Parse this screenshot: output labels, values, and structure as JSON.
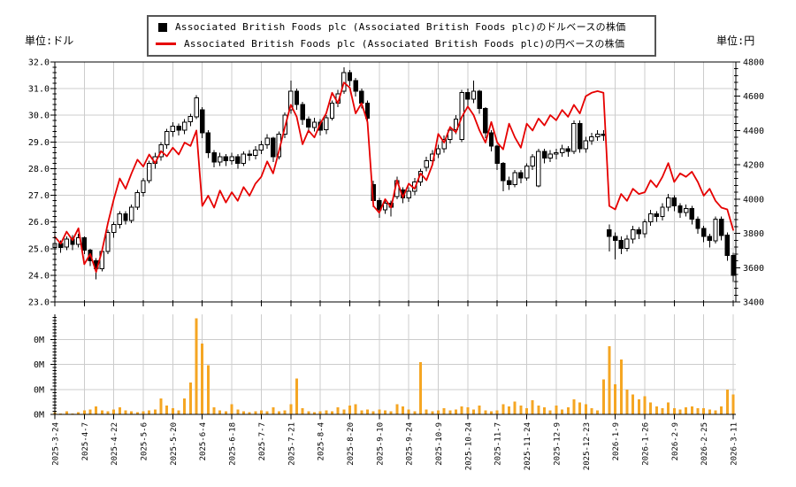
{
  "header": {
    "left_unit_label": "単位:ドル",
    "right_unit_label": "単位:円"
  },
  "legend": {
    "entries": [
      {
        "marker": "black-square",
        "label": "Associated British Foods plc (Associated British Foods plc)のドルベースの株価"
      },
      {
        "marker": "red-line",
        "label": "Associated British Foods plc (Associated British Foods plc)の円ベースの株価"
      }
    ]
  },
  "colors": {
    "grid": "#cccccc",
    "axis": "#000000",
    "background": "#ffffff",
    "red_line": "#e60000",
    "volume_bar": "#f5a623",
    "candle_up_fill": "#ffffff",
    "candle_down_fill": "#000000"
  },
  "chart_data": [
    {
      "type": "candlestick",
      "panel": "price",
      "x_tick_labels": [
        "2025-3-24",
        "2025-4-7",
        "2025-4-22",
        "2025-5-6",
        "2025-5-20",
        "2025-6-4",
        "2025-6-18",
        "2025-7-7",
        "2025-7-21",
        "2025-8-4",
        "2025-8-20",
        "2025-9-10",
        "2025-9-24",
        "2025-10-9",
        "2025-10-24",
        "2025-11-7",
        "2025-11-24",
        "2025-12-9",
        "2025-12-23",
        "2026-1-9",
        "2026-1-26",
        "2026-2-9",
        "2026-2-25",
        "2026-3-11"
      ],
      "points_per_tick": 5,
      "grid": true,
      "y_axis_left": {
        "unit": "ドル",
        "range": [
          23.0,
          32.0
        ],
        "tick_step": 1.0,
        "minor_step": 0.2,
        "tick_labels_top_down": [
          "32.0",
          "31.0",
          "30.0",
          "29.0",
          "28.0",
          "27.0",
          "26.0",
          "25.0",
          "24.0",
          "23.0"
        ]
      },
      "y_axis_right": {
        "unit": "円",
        "range": [
          3400,
          4800
        ],
        "tick_step": 200,
        "minor_step": 40,
        "tick_labels_top_down": [
          "4800",
          "4600",
          "4400",
          "4200",
          "4000",
          "3800",
          "3600",
          "3400"
        ]
      },
      "series": [
        {
          "name": "Associated British Foods plc (Associated British Foods plc)のドルベースの株価",
          "type": "candlestick",
          "axis": "left",
          "open": [
            25.05,
            25.2,
            25.05,
            25.35,
            25.15,
            25.4,
            24.95,
            24.55,
            24.25,
            24.9,
            25.6,
            25.9,
            26.3,
            26.05,
            26.55,
            27.1,
            27.55,
            28.2,
            28.45,
            28.9,
            29.4,
            29.6,
            29.45,
            29.75,
            29.95,
            30.2,
            29.35,
            28.6,
            28.25,
            28.45,
            28.3,
            28.45,
            28.2,
            28.55,
            28.5,
            28.7,
            28.9,
            29.15,
            28.45,
            29.3,
            30.2,
            30.9,
            30.4,
            29.85,
            29.55,
            29.75,
            29.45,
            29.9,
            30.45,
            30.9,
            31.6,
            31.3,
            30.9,
            30.45,
            27.4,
            26.8,
            26.45,
            26.7,
            26.95,
            27.2,
            26.9,
            27.15,
            27.5,
            28.05,
            28.3,
            28.55,
            28.75,
            29.1,
            29.45,
            29.1,
            30.85,
            30.6,
            30.9,
            30.25,
            29.35,
            28.85,
            28.2,
            27.55,
            27.4,
            27.85,
            27.65,
            28.1,
            27.35,
            28.65,
            28.4,
            28.55,
            28.6,
            28.75,
            28.65,
            29.7,
            28.75,
            29.05,
            29.2,
            29.3,
            25.7,
            25.45,
            25.3,
            25.0,
            25.35,
            25.7,
            25.55,
            26.0,
            26.3,
            26.2,
            26.55,
            26.9,
            26.6,
            26.35,
            26.5,
            26.1,
            25.75,
            25.45,
            25.3,
            26.1,
            25.5,
            24.75
          ],
          "high": [
            25.3,
            25.3,
            25.45,
            25.5,
            25.55,
            25.45,
            25.0,
            24.65,
            25.0,
            25.7,
            26.0,
            26.4,
            26.4,
            26.65,
            27.2,
            27.65,
            28.3,
            28.6,
            29.0,
            29.5,
            29.75,
            29.7,
            29.85,
            30.05,
            30.75,
            30.3,
            29.45,
            28.7,
            28.6,
            28.55,
            28.6,
            28.55,
            28.65,
            28.7,
            28.85,
            29.05,
            29.3,
            29.2,
            29.4,
            30.1,
            31.3,
            31.0,
            30.5,
            29.95,
            29.9,
            29.85,
            30.0,
            30.55,
            30.95,
            31.8,
            31.7,
            31.4,
            31.0,
            30.55,
            27.55,
            26.9,
            26.85,
            26.8,
            27.7,
            27.3,
            27.3,
            27.65,
            28.0,
            28.45,
            28.7,
            28.9,
            29.25,
            29.6,
            30.0,
            30.95,
            31.0,
            31.3,
            30.95,
            30.3,
            29.45,
            28.9,
            28.25,
            27.7,
            27.95,
            27.95,
            28.2,
            28.55,
            28.75,
            28.75,
            28.7,
            28.75,
            28.9,
            28.85,
            29.8,
            29.8,
            29.2,
            29.35,
            29.45,
            29.45,
            25.9,
            25.6,
            25.45,
            25.5,
            25.85,
            25.8,
            26.1,
            26.45,
            26.4,
            26.7,
            27.05,
            27.0,
            26.7,
            26.65,
            26.6,
            26.2,
            25.85,
            25.55,
            26.2,
            26.2,
            25.6,
            24.85
          ],
          "low": [
            24.9,
            24.85,
            24.95,
            24.95,
            25.05,
            24.8,
            24.35,
            23.85,
            24.15,
            24.8,
            25.4,
            25.75,
            25.9,
            25.95,
            26.45,
            26.95,
            27.45,
            28.0,
            28.3,
            28.75,
            29.2,
            29.25,
            29.3,
            29.6,
            29.85,
            29.15,
            28.4,
            28.05,
            28.1,
            28.1,
            28.15,
            28.0,
            28.1,
            28.3,
            28.35,
            28.55,
            28.75,
            28.25,
            28.35,
            29.15,
            30.05,
            30.2,
            29.65,
            29.35,
            29.4,
            29.25,
            29.3,
            29.8,
            30.3,
            30.8,
            31.1,
            30.7,
            30.25,
            29.7,
            26.55,
            26.15,
            26.3,
            26.2,
            26.85,
            26.7,
            26.75,
            27.0,
            27.35,
            27.9,
            28.15,
            28.4,
            28.6,
            28.95,
            29.3,
            29.0,
            30.35,
            30.45,
            30.05,
            29.15,
            28.65,
            27.95,
            27.15,
            27.2,
            27.3,
            27.45,
            27.55,
            27.95,
            27.3,
            28.2,
            28.25,
            28.35,
            28.45,
            28.45,
            28.55,
            28.6,
            28.6,
            28.9,
            29.05,
            29.05,
            24.9,
            24.6,
            24.8,
            24.9,
            25.2,
            25.35,
            25.4,
            25.85,
            26.0,
            26.05,
            26.4,
            26.4,
            26.15,
            26.2,
            25.9,
            25.55,
            25.25,
            25.05,
            25.2,
            25.3,
            24.55,
            23.75
          ],
          "close": [
            25.2,
            25.05,
            25.35,
            25.15,
            25.4,
            24.95,
            24.55,
            24.25,
            24.9,
            25.6,
            25.9,
            26.3,
            26.05,
            26.55,
            27.1,
            27.55,
            28.2,
            28.45,
            28.9,
            29.4,
            29.6,
            29.45,
            29.75,
            29.95,
            30.65,
            29.35,
            28.6,
            28.25,
            28.45,
            28.3,
            28.45,
            28.2,
            28.55,
            28.5,
            28.7,
            28.9,
            29.15,
            28.45,
            29.3,
            30.0,
            30.9,
            30.4,
            29.85,
            29.55,
            29.75,
            29.45,
            29.9,
            30.45,
            30.8,
            31.6,
            31.3,
            30.9,
            30.45,
            29.9,
            26.8,
            26.45,
            26.7,
            26.55,
            27.55,
            26.9,
            27.15,
            27.5,
            27.9,
            28.3,
            28.55,
            28.75,
            29.1,
            29.45,
            29.85,
            30.85,
            30.6,
            30.9,
            30.25,
            29.35,
            28.85,
            28.2,
            27.55,
            27.4,
            27.85,
            27.65,
            28.1,
            28.45,
            28.65,
            28.4,
            28.55,
            28.6,
            28.75,
            28.65,
            29.7,
            28.75,
            29.05,
            29.2,
            29.3,
            29.25,
            25.45,
            25.3,
            25.0,
            25.35,
            25.7,
            25.55,
            26.0,
            26.3,
            26.2,
            26.55,
            26.9,
            26.6,
            26.35,
            26.5,
            26.1,
            25.75,
            25.45,
            25.3,
            26.1,
            25.5,
            24.75,
            24.0
          ]
        },
        {
          "name": "Associated British Foods plc (Associated British Foods plc)の円ベースの株価",
          "type": "line",
          "axis": "right",
          "color": "#e60000",
          "values": [
            3780,
            3740,
            3810,
            3760,
            3830,
            3620,
            3680,
            3575,
            3700,
            3860,
            4000,
            4120,
            4060,
            4150,
            4230,
            4190,
            4260,
            4210,
            4280,
            4250,
            4300,
            4260,
            4330,
            4310,
            4400,
            3960,
            4020,
            3950,
            4050,
            3980,
            4040,
            3990,
            4070,
            4020,
            4090,
            4130,
            4220,
            4150,
            4280,
            4420,
            4550,
            4480,
            4320,
            4400,
            4360,
            4440,
            4500,
            4620,
            4560,
            4680,
            4650,
            4500,
            4560,
            4450,
            3960,
            3920,
            4000,
            3950,
            4110,
            4010,
            4090,
            4060,
            4150,
            4110,
            4200,
            4380,
            4330,
            4420,
            4390,
            4480,
            4540,
            4490,
            4400,
            4330,
            4450,
            4330,
            4290,
            4440,
            4360,
            4300,
            4440,
            4400,
            4470,
            4430,
            4490,
            4460,
            4520,
            4480,
            4550,
            4500,
            4600,
            4620,
            4630,
            4620,
            3960,
            3940,
            4030,
            3990,
            4060,
            4030,
            4040,
            4110,
            4070,
            4130,
            4210,
            4100,
            4150,
            4130,
            4160,
            4100,
            4020,
            4060,
            3990,
            3950,
            3940,
            3820
          ]
        }
      ]
    },
    {
      "type": "bar",
      "panel": "volume",
      "color": "#f5a623",
      "y_tick_labels_bottom_up": [
        "0M",
        "0M",
        "0M",
        "0M"
      ],
      "values_pct_of_max": [
        2,
        1,
        3,
        1,
        2,
        4,
        5,
        8,
        4,
        3,
        5,
        7,
        4,
        3,
        2,
        3,
        4,
        5,
        16,
        9,
        6,
        4,
        16,
        32,
        96,
        71,
        49,
        7,
        4,
        3,
        10,
        5,
        3,
        2,
        3,
        4,
        3,
        7,
        3,
        4,
        10,
        36,
        6,
        3,
        2,
        3,
        4,
        3,
        7,
        5,
        9,
        10,
        4,
        5,
        3,
        5,
        4,
        3,
        10,
        8,
        5,
        3,
        52,
        5,
        3,
        4,
        6,
        4,
        5,
        8,
        7,
        5,
        9,
        4,
        3,
        4,
        10,
        8,
        13,
        9,
        6,
        14,
        9,
        7,
        4,
        9,
        5,
        7,
        15,
        12,
        10,
        6,
        4,
        35,
        68,
        30,
        55,
        25,
        20,
        15,
        18,
        12,
        8,
        6,
        12,
        6,
        5,
        7,
        8,
        6,
        6,
        5,
        4,
        8,
        25,
        20
      ]
    }
  ]
}
